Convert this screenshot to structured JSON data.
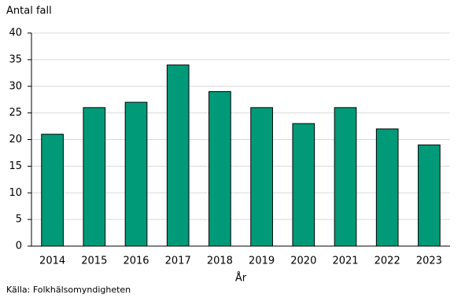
{
  "chart_data": {
    "type": "bar",
    "y_label": "Antal fall",
    "x_label": "År",
    "source": "Källa: Folkhälsomyndigheten",
    "categories": [
      "2014",
      "2015",
      "2016",
      "2017",
      "2018",
      "2019",
      "2020",
      "2021",
      "2022",
      "2023"
    ],
    "values": [
      21,
      26,
      27,
      34,
      29,
      26,
      23,
      26,
      22,
      19
    ],
    "color": "#009a78",
    "ylim": [
      0,
      40
    ],
    "yticks": [
      0,
      5,
      10,
      15,
      20,
      25,
      30,
      35,
      40
    ],
    "grid": true
  }
}
